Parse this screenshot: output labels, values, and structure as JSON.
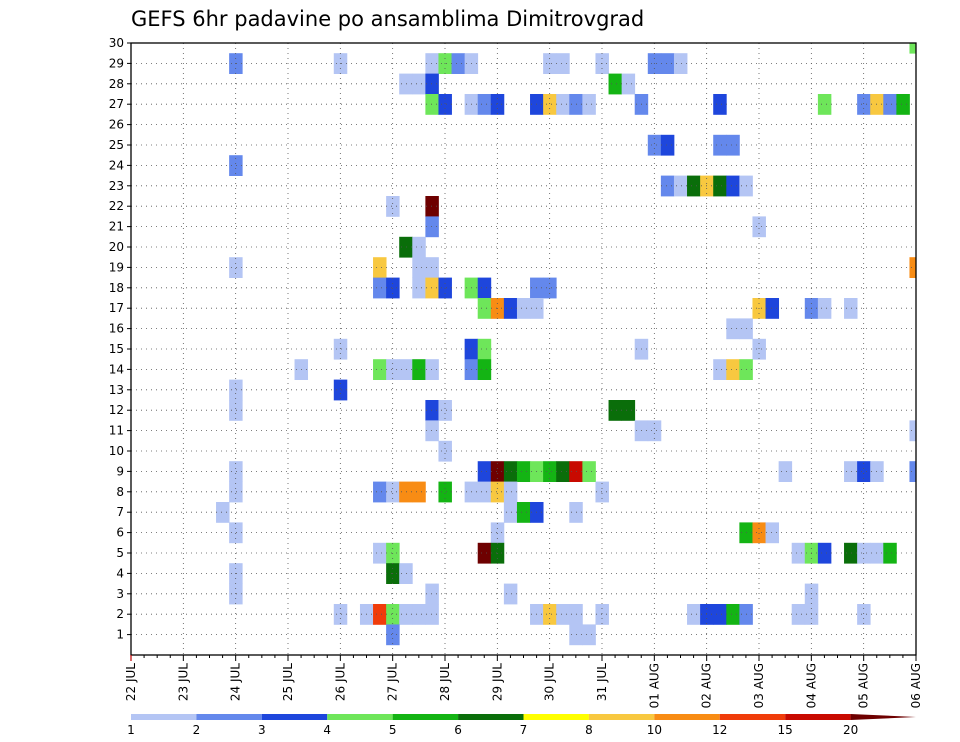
{
  "chart_data": {
    "type": "heatmap",
    "title": "GEFS 6hr padavine po ansamblima Dimitrovgrad",
    "xlabel": "",
    "ylabel": "",
    "x_tick_labels": [
      "22 JUL",
      "23 JUL",
      "24 JUL",
      "25 JUL",
      "26 JUL",
      "27 JUL",
      "28 JUL",
      "29 JUL",
      "30 JUL",
      "31 JUL",
      "01 AUG",
      "02 AUG",
      "03 AUG",
      "04 AUG",
      "05 AUG",
      "06 AUG"
    ],
    "x_unit": "6-hour step (4 steps per day, step 0 = 22 JUL 00Z)",
    "xlim": [
      0,
      60
    ],
    "y_tick_labels": [
      "1",
      "2",
      "3",
      "4",
      "5",
      "6",
      "7",
      "8",
      "9",
      "10",
      "11",
      "12",
      "13",
      "14",
      "15",
      "16",
      "17",
      "18",
      "19",
      "20",
      "21",
      "22",
      "23",
      "24",
      "25",
      "26",
      "27",
      "28",
      "29",
      "30"
    ],
    "ylim": [
      0,
      30
    ],
    "grid": true,
    "colorbar": {
      "labels": [
        "1",
        "2",
        "3",
        "4",
        "5",
        "6",
        "7",
        "8",
        "10",
        "12",
        "15",
        "20"
      ],
      "colors": [
        "#b4c5f4",
        "#6488ec",
        "#1e46dc",
        "#6ee65a",
        "#14b414",
        "#0a6e0a",
        "#ffff00",
        "#f8c840",
        "#f88c14",
        "#f03c0a",
        "#c80a00",
        "#6e0000"
      ]
    },
    "cells": [
      [
        30,
        59.5,
        3
      ],
      [
        29,
        7.5,
        1
      ],
      [
        29,
        15.5,
        0
      ],
      [
        29,
        22.5,
        0
      ],
      [
        29,
        23.5,
        3
      ],
      [
        29,
        24.5,
        1
      ],
      [
        29,
        25.5,
        0
      ],
      [
        29,
        31.5,
        0
      ],
      [
        29,
        32.5,
        0
      ],
      [
        29,
        35.5,
        0
      ],
      [
        29,
        39.5,
        1
      ],
      [
        29,
        40.5,
        1
      ],
      [
        29,
        41.5,
        0
      ],
      [
        28,
        20.5,
        0
      ],
      [
        28,
        21.5,
        0
      ],
      [
        28,
        22.5,
        2
      ],
      [
        28,
        36.5,
        4
      ],
      [
        28,
        37.5,
        0
      ],
      [
        27,
        22.5,
        3
      ],
      [
        27,
        23.5,
        2
      ],
      [
        27,
        25.5,
        0
      ],
      [
        27,
        26.5,
        1
      ],
      [
        27,
        27.5,
        2
      ],
      [
        27,
        30.5,
        2
      ],
      [
        27,
        31.5,
        7
      ],
      [
        27,
        32.5,
        0
      ],
      [
        27,
        33.5,
        1
      ],
      [
        27,
        34.5,
        0
      ],
      [
        27,
        38.5,
        1
      ],
      [
        27,
        44.5,
        2
      ],
      [
        27,
        52.5,
        3
      ],
      [
        27,
        55.5,
        1
      ],
      [
        27,
        56.5,
        7
      ],
      [
        27,
        57.5,
        1
      ],
      [
        27,
        58.5,
        4
      ],
      [
        25,
        39.5,
        1
      ],
      [
        25,
        40.5,
        2
      ],
      [
        25,
        44.5,
        1
      ],
      [
        25,
        45.5,
        1
      ],
      [
        24,
        7.5,
        1
      ],
      [
        24,
        60.5,
        0
      ],
      [
        23,
        40.5,
        1
      ],
      [
        23,
        41.5,
        0
      ],
      [
        23,
        42.5,
        5
      ],
      [
        23,
        43.5,
        7
      ],
      [
        23,
        44.5,
        5
      ],
      [
        23,
        45.5,
        2
      ],
      [
        23,
        46.5,
        0
      ],
      [
        22,
        19.5,
        0
      ],
      [
        22,
        22.5,
        11
      ],
      [
        21,
        22.5,
        1
      ],
      [
        21,
        47.5,
        0
      ],
      [
        20,
        20.5,
        5
      ],
      [
        20,
        21.5,
        0
      ],
      [
        19,
        7.5,
        0
      ],
      [
        19,
        18.5,
        7
      ],
      [
        19,
        21.5,
        0
      ],
      [
        19,
        22.5,
        0
      ],
      [
        19,
        59.5,
        8
      ],
      [
        18,
        18.5,
        1
      ],
      [
        18,
        19.5,
        2
      ],
      [
        18,
        21.5,
        0
      ],
      [
        18,
        22.5,
        7
      ],
      [
        18,
        23.5,
        2
      ],
      [
        18,
        25.5,
        3
      ],
      [
        18,
        26.5,
        2
      ],
      [
        18,
        30.5,
        1
      ],
      [
        18,
        31.5,
        1
      ],
      [
        17,
        26.5,
        3
      ],
      [
        17,
        27.5,
        8
      ],
      [
        17,
        28.5,
        2
      ],
      [
        17,
        29.5,
        0
      ],
      [
        17,
        30.5,
        0
      ],
      [
        17,
        47.5,
        7
      ],
      [
        17,
        48.5,
        2
      ],
      [
        17,
        51.5,
        1
      ],
      [
        17,
        52.5,
        0
      ],
      [
        17,
        54.5,
        0
      ],
      [
        16,
        45.5,
        0
      ],
      [
        16,
        46.5,
        0
      ],
      [
        15,
        15.5,
        0
      ],
      [
        15,
        25.5,
        2
      ],
      [
        15,
        26.5,
        3
      ],
      [
        15,
        38.5,
        0
      ],
      [
        15,
        47.5,
        0
      ],
      [
        14,
        12.5,
        0
      ],
      [
        14,
        18.5,
        3
      ],
      [
        14,
        19.5,
        0
      ],
      [
        14,
        20.5,
        0
      ],
      [
        14,
        21.5,
        4
      ],
      [
        14,
        22.5,
        0
      ],
      [
        14,
        25.5,
        1
      ],
      [
        14,
        26.5,
        4
      ],
      [
        14,
        44.5,
        0
      ],
      [
        14,
        45.5,
        7
      ],
      [
        14,
        46.5,
        3
      ],
      [
        13,
        7.5,
        0
      ],
      [
        13,
        15.5,
        2
      ],
      [
        12,
        7.5,
        0
      ],
      [
        12,
        22.5,
        2
      ],
      [
        12,
        23.5,
        0
      ],
      [
        12,
        36.5,
        5
      ],
      [
        12,
        37.5,
        5
      ],
      [
        11,
        22.5,
        0
      ],
      [
        11,
        38.5,
        0
      ],
      [
        11,
        39.5,
        0
      ],
      [
        11,
        59.5,
        0
      ],
      [
        10,
        23.5,
        0
      ],
      [
        9,
        7.5,
        0
      ],
      [
        9,
        26.5,
        2
      ],
      [
        9,
        27.5,
        11
      ],
      [
        9,
        28.5,
        5
      ],
      [
        9,
        29.5,
        4
      ],
      [
        9,
        30.5,
        3
      ],
      [
        9,
        31.5,
        4
      ],
      [
        9,
        32.5,
        5
      ],
      [
        9,
        33.5,
        10
      ],
      [
        9,
        34.5,
        3
      ],
      [
        9,
        49.5,
        0
      ],
      [
        9,
        54.5,
        0
      ],
      [
        9,
        55.5,
        2
      ],
      [
        9,
        56.5,
        0
      ],
      [
        9,
        59.5,
        1
      ],
      [
        8,
        7.5,
        0
      ],
      [
        8,
        18.5,
        1
      ],
      [
        8,
        19.5,
        0
      ],
      [
        8,
        20.5,
        8
      ],
      [
        8,
        21.5,
        8
      ],
      [
        8,
        23.5,
        4
      ],
      [
        8,
        25.5,
        0
      ],
      [
        8,
        26.5,
        0
      ],
      [
        8,
        27.5,
        7
      ],
      [
        8,
        28.5,
        0
      ],
      [
        8,
        35.5,
        0
      ],
      [
        7,
        6.5,
        0
      ],
      [
        7,
        28.5,
        0
      ],
      [
        7,
        29.5,
        4
      ],
      [
        7,
        30.5,
        2
      ],
      [
        7,
        33.5,
        0
      ],
      [
        6,
        7.5,
        0
      ],
      [
        6,
        27.5,
        0
      ],
      [
        6,
        46.5,
        4
      ],
      [
        6,
        47.5,
        8
      ],
      [
        6,
        48.5,
        0
      ],
      [
        5,
        18.5,
        0
      ],
      [
        5,
        19.5,
        3
      ],
      [
        5,
        26.5,
        11
      ],
      [
        5,
        27.5,
        5
      ],
      [
        5,
        50.5,
        0
      ],
      [
        5,
        51.5,
        3
      ],
      [
        5,
        52.5,
        2
      ],
      [
        5,
        54.5,
        5
      ],
      [
        5,
        55.5,
        0
      ],
      [
        5,
        56.5,
        0
      ],
      [
        5,
        57.5,
        4
      ],
      [
        4,
        7.5,
        0
      ],
      [
        4,
        19.5,
        5
      ],
      [
        4,
        20.5,
        0
      ],
      [
        3,
        7.5,
        0
      ],
      [
        3,
        22.5,
        0
      ],
      [
        3,
        28.5,
        0
      ],
      [
        3,
        51.5,
        0
      ],
      [
        2,
        15.5,
        0
      ],
      [
        2,
        17.5,
        0
      ],
      [
        2,
        18.5,
        9
      ],
      [
        2,
        19.5,
        3
      ],
      [
        2,
        20.5,
        0
      ],
      [
        2,
        21.5,
        0
      ],
      [
        2,
        22.5,
        0
      ],
      [
        2,
        30.5,
        0
      ],
      [
        2,
        31.5,
        7
      ],
      [
        2,
        32.5,
        0
      ],
      [
        2,
        33.5,
        0
      ],
      [
        2,
        35.5,
        0
      ],
      [
        2,
        42.5,
        0
      ],
      [
        2,
        43.5,
        2
      ],
      [
        2,
        44.5,
        2
      ],
      [
        2,
        45.5,
        4
      ],
      [
        2,
        46.5,
        1
      ],
      [
        2,
        50.5,
        0
      ],
      [
        2,
        51.5,
        0
      ],
      [
        2,
        55.5,
        0
      ],
      [
        1,
        19.5,
        1
      ],
      [
        1,
        33.5,
        0
      ],
      [
        1,
        34.5,
        0
      ]
    ]
  }
}
